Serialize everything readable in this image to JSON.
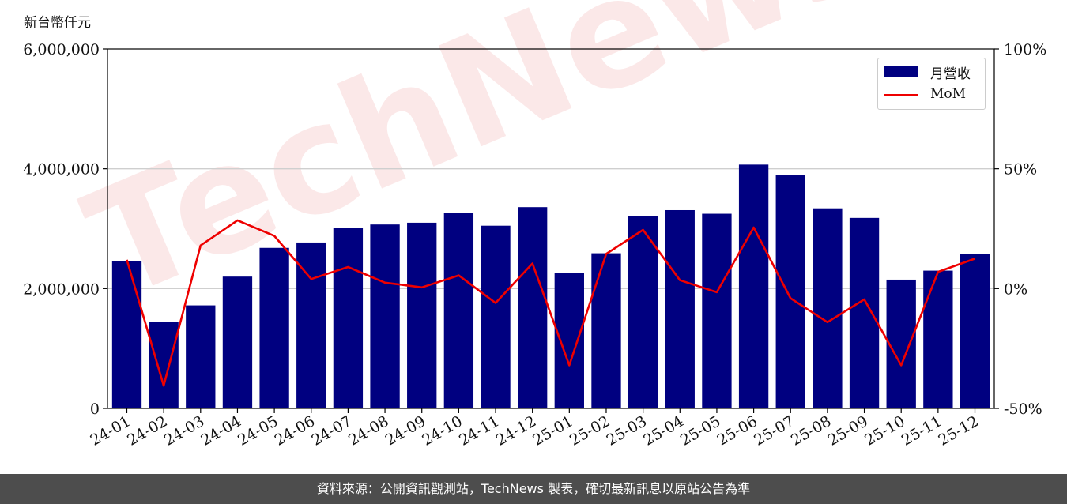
{
  "unit_label": "新台幣仟元",
  "footer_text": "資料來源：公開資訊觀測站，TechNews 製表，確切最新訊息以原站公告為準",
  "watermark_text": "TechNews",
  "colors": {
    "bar": "#000080",
    "line": "#ee0000",
    "footer_bg": "#4d4d4d",
    "watermark": "#f7d6d6"
  },
  "chart_data": {
    "type": "bar",
    "categories": [
      "24-01",
      "24-02",
      "24-03",
      "24-04",
      "24-05",
      "24-06",
      "24-07",
      "24-08",
      "24-09",
      "24-10",
      "24-11",
      "24-12",
      "25-01",
      "25-02",
      "25-03",
      "25-04",
      "25-05",
      "25-06",
      "25-07",
      "25-08",
      "25-09",
      "25-10",
      "25-11",
      "25-12"
    ],
    "series": [
      {
        "name": "月營收",
        "axis": "left",
        "type": "bar",
        "values": [
          2460000,
          1450000,
          1720000,
          2200000,
          2680000,
          2770000,
          3010000,
          3070000,
          3100000,
          3260000,
          3050000,
          3360000,
          2260000,
          2590000,
          3210000,
          3310000,
          3250000,
          4070000,
          3890000,
          3340000,
          3180000,
          2150000,
          2300000,
          2580000
        ]
      },
      {
        "name": "MoM",
        "axis": "right",
        "type": "line",
        "values": [
          12,
          -40.5,
          18,
          28.5,
          22,
          4,
          9,
          2.5,
          0.5,
          5.5,
          -6,
          10.5,
          -32,
          14.5,
          24.5,
          3.5,
          -1.5,
          25.5,
          -4,
          -14,
          -4.5,
          -32,
          7,
          12.5
        ]
      }
    ],
    "y_left": {
      "ylim": [
        0,
        6000000
      ],
      "ticks": [
        0,
        2000000,
        4000000,
        6000000
      ],
      "tick_labels": [
        "0",
        "2,000,000",
        "4,000,000",
        "6,000,000"
      ]
    },
    "y_right": {
      "ylim": [
        -50,
        100
      ],
      "ticks": [
        -50,
        0,
        50,
        100
      ],
      "tick_labels": [
        "-50%",
        "0%",
        "50%",
        "100%"
      ]
    },
    "grid": true,
    "legend": "top-right"
  }
}
